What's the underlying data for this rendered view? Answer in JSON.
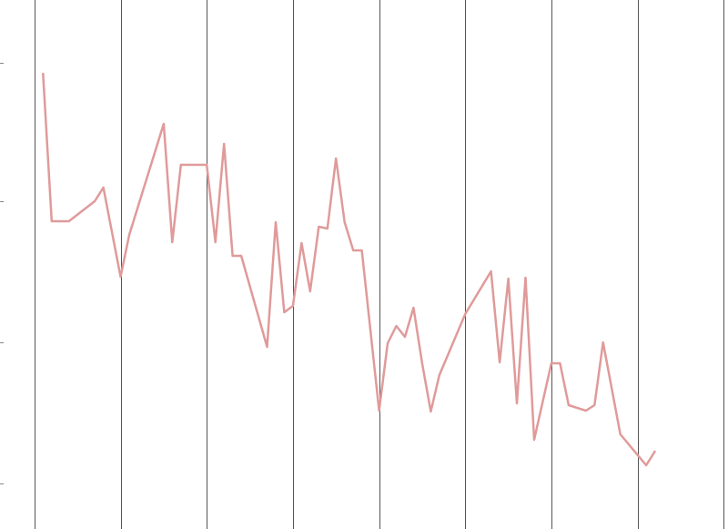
{
  "chart_data": {
    "type": "line",
    "title": "",
    "xlabel": "",
    "ylabel": "",
    "grid": {
      "vertical": true,
      "horizontal": false
    },
    "legend": "none",
    "xlim": [
      0.6,
      9.05
    ],
    "ylim": [
      0,
      581
    ],
    "series_color": "#e09a9a",
    "x_gridlines": [
      1,
      2,
      3,
      4,
      5,
      6,
      7,
      8,
      9
    ],
    "y_ticks": [
      50,
      205,
      360,
      512
    ],
    "series": [
      {
        "x": [
          1.1,
          1.2,
          1.4,
          1.7,
          1.8,
          2.0,
          2.1,
          2.5,
          2.6,
          2.7,
          3.0,
          3.1,
          3.2,
          3.3,
          3.4,
          3.7,
          3.8,
          3.9,
          4.0,
          4.1,
          4.2,
          4.3,
          4.4,
          4.5,
          4.6,
          4.7,
          4.8,
          5.0,
          5.1,
          5.2,
          5.3,
          5.4,
          5.5,
          5.6,
          5.7,
          6.0,
          6.3,
          6.4,
          6.5,
          6.6,
          6.7,
          6.8,
          7.0,
          7.1,
          7.2,
          7.4,
          7.5,
          7.6,
          7.8,
          8.1,
          8.2
        ],
        "y": [
          500,
          338,
          338,
          360,
          375,
          277,
          323,
          445,
          315,
          400,
          400,
          315,
          423,
          300,
          300,
          200,
          337,
          238,
          245,
          314,
          261,
          332,
          330,
          407,
          337,
          306,
          306,
          130,
          204,
          223,
          211,
          243,
          182,
          129,
          169,
          236,
          283,
          183,
          275,
          138,
          276,
          98,
          182,
          182,
          136,
          130,
          136,
          205,
          104,
          70,
          85
        ]
      }
    ]
  }
}
